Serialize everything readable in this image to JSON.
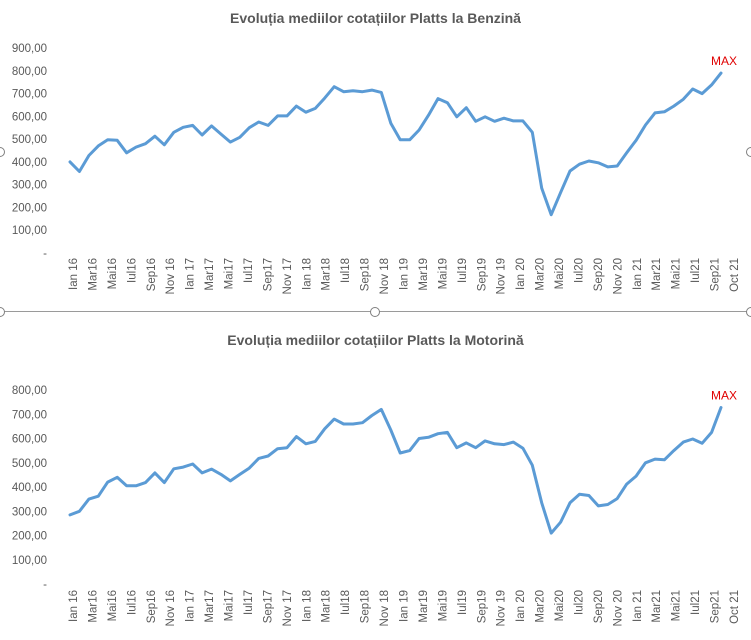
{
  "chart_data": [
    {
      "type": "line",
      "title": "Evoluția mediilor cotațiilor Platts la Benzină",
      "yticks": [
        "-",
        "100,00",
        "200,00",
        "300,00",
        "400,00",
        "500,00",
        "600,00",
        "700,00",
        "800,00",
        "900,00"
      ],
      "ylim": [
        0,
        900
      ],
      "xticks": [
        "Ian 16",
        "Mar16",
        "Mai16",
        "Iul16",
        "Sep16",
        "Nov 16",
        "Ian 17",
        "Mar17",
        "Mai17",
        "Iul17",
        "Sep17",
        "Nov 17",
        "Ian 18",
        "Mar18",
        "Iul18",
        "Sep18",
        "Nov 18",
        "Ian 19",
        "Mar19",
        "Mai19",
        "Iul19",
        "Sep19",
        "Nov 19",
        "Ian 20",
        "Mar20",
        "Mai20",
        "Iul20",
        "Sep20",
        "Nov 20",
        "Ian 21",
        "Mar21",
        "Mai21",
        "Iul21",
        "Sep21",
        "Oct 21"
      ],
      "annotation": "MAX",
      "line_color": "#5b9bd5",
      "values": [
        400,
        358,
        428,
        470,
        497,
        495,
        440,
        465,
        480,
        513,
        475,
        530,
        552,
        560,
        518,
        558,
        522,
        487,
        508,
        550,
        575,
        560,
        602,
        602,
        645,
        618,
        635,
        680,
        730,
        708,
        712,
        708,
        715,
        705,
        570,
        497,
        497,
        540,
        605,
        678,
        660,
        598,
        638,
        578,
        598,
        578,
        592,
        580,
        580,
        530,
        285,
        168,
        265,
        360,
        390,
        404,
        396,
        378,
        382,
        440,
        495,
        562,
        615,
        620,
        645,
        675,
        720,
        700,
        738,
        790
      ]
    },
    {
      "type": "line",
      "title": "Evoluția mediilor cotațiilor Platts la Motorină",
      "yticks": [
        "-",
        "100,00",
        "200,00",
        "300,00",
        "400,00",
        "500,00",
        "600,00",
        "700,00",
        "800,00"
      ],
      "ylim": [
        0,
        800
      ],
      "xticks": [
        "Ian 16",
        "Mar16",
        "Mai16",
        "Iul16",
        "Sep16",
        "Nov 16",
        "Ian 17",
        "Mar17",
        "Mai17",
        "Iul17",
        "Sep17",
        "Nov 17",
        "Ian 18",
        "Mar18",
        "Iul18",
        "Sep18",
        "Nov 18",
        "Ian 19",
        "Mar19",
        "Mai19",
        "Iul19",
        "Sep19",
        "Nov 19",
        "Ian 20",
        "Mar20",
        "Mai20",
        "Iul20",
        "Sep20",
        "Nov 20",
        "Ian 21",
        "Mar21",
        "Mai21",
        "Iul21",
        "Sep21",
        "Oct 21"
      ],
      "annotation": "MAX",
      "line_color": "#5b9bd5",
      "values": [
        285,
        300,
        350,
        362,
        420,
        440,
        405,
        405,
        418,
        458,
        418,
        475,
        482,
        495,
        458,
        474,
        452,
        425,
        452,
        478,
        518,
        528,
        558,
        562,
        608,
        578,
        588,
        640,
        680,
        660,
        660,
        665,
        695,
        720,
        635,
        540,
        550,
        600,
        605,
        620,
        625,
        562,
        582,
        562,
        590,
        578,
        575,
        585,
        560,
        490,
        335,
        210,
        255,
        335,
        370,
        365,
        322,
        328,
        352,
        412,
        445,
        500,
        515,
        512,
        550,
        585,
        598,
        580,
        625,
        728
      ]
    }
  ]
}
